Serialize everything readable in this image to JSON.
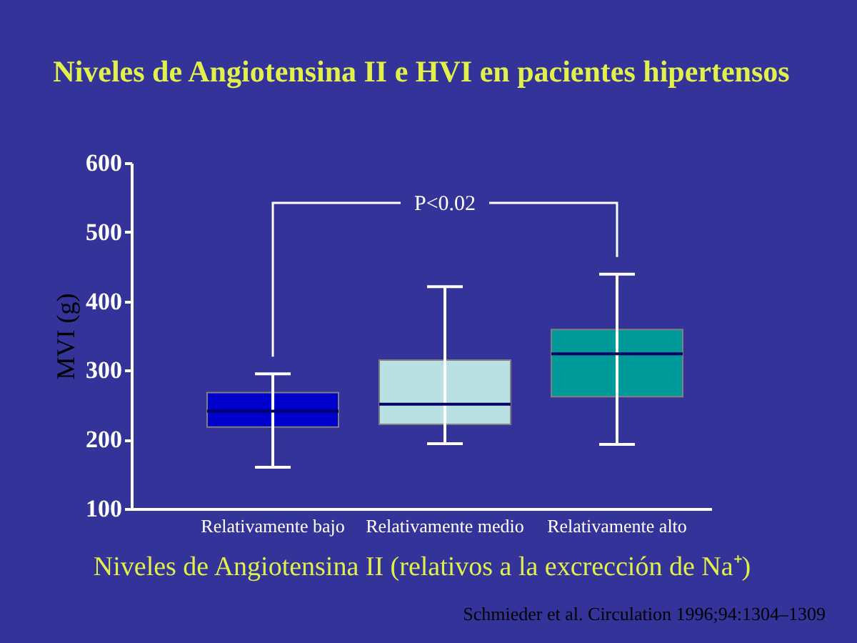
{
  "chart_data": {
    "type": "box",
    "title": "Niveles de Angiotensina II e  HVI en pacientes hipertensos",
    "xlabel": "Niveles de Angiotensina II (relativos a la excrección de Na⁺)",
    "ylabel": "MVI  (g)",
    "categories": [
      "Relativamente bajo",
      "Relativamente medio",
      "Relativamente alto"
    ],
    "boxes": [
      {
        "low": 160,
        "q1": 218,
        "median": 241,
        "q3": 268,
        "high": 295
      },
      {
        "low": 194,
        "q1": 222,
        "median": 251,
        "q3": 315,
        "high": 421
      },
      {
        "low": 193,
        "q1": 262,
        "median": 324,
        "q3": 359,
        "high": 439
      }
    ],
    "colors": [
      "#0000cc",
      "#b9e1e4",
      "#009999"
    ],
    "ylim": [
      100,
      600
    ],
    "yticks": [
      100,
      200,
      300,
      400,
      500,
      600
    ],
    "grid": false,
    "annotations": [
      "P<0.02",
      "Schmieder et al. Circulation 1996;94:1304–1309"
    ]
  }
}
